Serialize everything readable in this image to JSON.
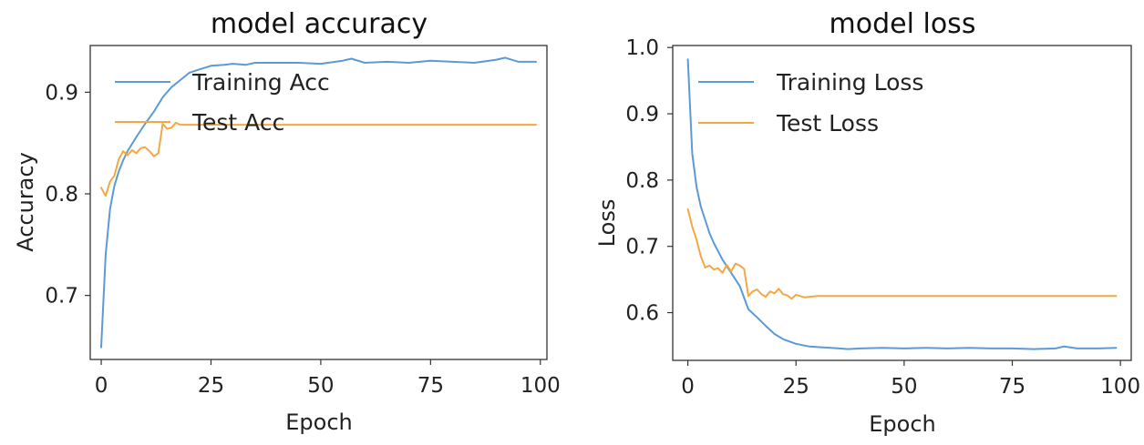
{
  "chart_data": [
    {
      "type": "line",
      "title": "model accuracy",
      "xlabel": "Epoch",
      "ylabel": "Accuracy",
      "xlim": [
        -2.5,
        101.5
      ],
      "ylim": [
        0.637,
        0.946
      ],
      "xticks": [
        0,
        25,
        50,
        75,
        100
      ],
      "xtick_labels": [
        "0",
        "25",
        "50",
        "75",
        "100"
      ],
      "yticks": [
        0.7,
        0.8,
        0.9
      ],
      "ytick_labels": [
        "0.7",
        "0.8",
        "0.9"
      ],
      "grid": false,
      "legend_position": "upper-left",
      "series": [
        {
          "name": "Training Acc",
          "color": "#5b9bd5",
          "x": [
            0,
            1,
            2,
            3,
            4,
            5,
            6,
            8,
            10,
            12,
            14,
            16,
            18,
            20,
            22,
            25,
            28,
            30,
            33,
            35,
            40,
            45,
            50,
            55,
            57,
            60,
            65,
            70,
            75,
            80,
            85,
            90,
            92,
            95,
            99
          ],
          "y": [
            0.649,
            0.74,
            0.785,
            0.808,
            0.822,
            0.833,
            0.842,
            0.856,
            0.869,
            0.881,
            0.895,
            0.905,
            0.912,
            0.919,
            0.922,
            0.926,
            0.927,
            0.928,
            0.927,
            0.929,
            0.929,
            0.929,
            0.928,
            0.931,
            0.933,
            0.929,
            0.93,
            0.929,
            0.931,
            0.93,
            0.929,
            0.932,
            0.934,
            0.93,
            0.93
          ]
        },
        {
          "name": "Test Acc",
          "color": "#f4a742",
          "x": [
            0,
            1,
            2,
            3,
            4,
            5,
            6,
            7,
            8,
            9,
            10,
            11,
            12,
            13,
            14,
            15,
            16,
            17,
            18,
            20,
            25,
            30,
            40,
            50,
            60,
            70,
            80,
            90,
            99
          ],
          "y": [
            0.806,
            0.798,
            0.812,
            0.818,
            0.834,
            0.842,
            0.838,
            0.843,
            0.84,
            0.845,
            0.846,
            0.842,
            0.837,
            0.84,
            0.869,
            0.864,
            0.865,
            0.87,
            0.868,
            0.868,
            0.868,
            0.868,
            0.868,
            0.868,
            0.868,
            0.868,
            0.868,
            0.868,
            0.868
          ]
        }
      ]
    },
    {
      "type": "line",
      "title": "model loss",
      "xlabel": "Epoch",
      "ylabel": "Loss",
      "xlim": [
        -3.5,
        102.5
      ],
      "ylim": [
        0.528,
        1.003
      ],
      "xticks": [
        0,
        25,
        50,
        75,
        100
      ],
      "xtick_labels": [
        "0",
        "25",
        "50",
        "75",
        "100"
      ],
      "yticks": [
        0.6,
        0.7,
        0.8,
        0.9,
        1.0
      ],
      "ytick_labels": [
        "0.6",
        "0.7",
        "0.8",
        "0.9",
        "1.0"
      ],
      "grid": false,
      "legend_position": "upper-right",
      "series": [
        {
          "name": "Training Loss",
          "color": "#5b9bd5",
          "x": [
            0,
            1,
            2,
            3,
            4,
            5,
            6,
            8,
            10,
            12,
            14,
            16,
            18,
            20,
            22,
            25,
            28,
            30,
            33,
            35,
            37,
            40,
            45,
            50,
            55,
            60,
            65,
            70,
            75,
            80,
            85,
            87,
            90,
            95,
            99
          ],
          "y": [
            0.982,
            0.84,
            0.79,
            0.76,
            0.74,
            0.72,
            0.705,
            0.68,
            0.66,
            0.64,
            0.605,
            0.593,
            0.58,
            0.568,
            0.56,
            0.553,
            0.549,
            0.548,
            0.547,
            0.546,
            0.545,
            0.546,
            0.547,
            0.546,
            0.547,
            0.546,
            0.547,
            0.546,
            0.546,
            0.545,
            0.546,
            0.549,
            0.546,
            0.546,
            0.547
          ]
        },
        {
          "name": "Test Loss",
          "color": "#f4a742",
          "x": [
            0,
            1,
            2,
            3,
            4,
            5,
            6,
            7,
            8,
            9,
            10,
            11,
            12,
            13,
            14,
            15,
            16,
            17,
            18,
            19,
            20,
            21,
            22,
            23,
            24,
            25,
            27,
            30,
            35,
            40,
            50,
            60,
            70,
            80,
            90,
            99
          ],
          "y": [
            0.756,
            0.73,
            0.71,
            0.685,
            0.668,
            0.671,
            0.665,
            0.667,
            0.66,
            0.672,
            0.662,
            0.674,
            0.671,
            0.666,
            0.625,
            0.632,
            0.635,
            0.628,
            0.624,
            0.632,
            0.629,
            0.636,
            0.628,
            0.626,
            0.621,
            0.627,
            0.623,
            0.625,
            0.625,
            0.625,
            0.625,
            0.625,
            0.625,
            0.625,
            0.625,
            0.625
          ]
        }
      ]
    }
  ]
}
